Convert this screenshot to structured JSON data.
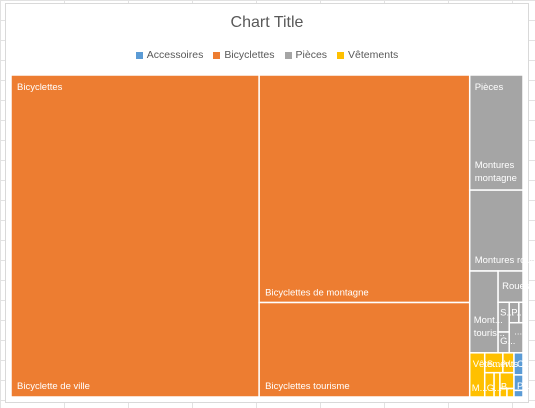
{
  "chart_data": {
    "type": "treemap",
    "title": "Chart Title",
    "legend": {
      "placement": "top",
      "entries": [
        {
          "name": "Accessoires",
          "color": "#5b9bd5"
        },
        {
          "name": "Bicyclettes",
          "color": "#ed7d31"
        },
        {
          "name": "Pièces",
          "color": "#a5a5a5"
        },
        {
          "name": "Vêtements",
          "color": "#ffc000"
        }
      ]
    },
    "groups": [
      {
        "name": "Bicyclettes",
        "color": "#ed7d31",
        "items": [
          {
            "name": "Bicyclette de ville",
            "value": 48.2
          },
          {
            "name": "Bicyclettes de montagne",
            "value": 28.9
          },
          {
            "name": "Bicyclettes tourisme",
            "value": 12.0
          }
        ]
      },
      {
        "name": "Pièces",
        "color": "#a5a5a5",
        "items": [
          {
            "name": "Montures montagne",
            "value": 3.7
          },
          {
            "name": "Montures route",
            "value": 2.6
          },
          {
            "name": "Mont... touris...",
            "value": 1.4
          },
          {
            "name": "Roues",
            "value": 0.47
          },
          {
            "name": "S...",
            "value": 0.2
          },
          {
            "name": "P...",
            "value": 0.17
          },
          {
            "name": "G...",
            "value": 0.14
          },
          {
            "name": "...",
            "value": 0.25
          }
        ]
      },
      {
        "name": "Vêtements",
        "color": "#ffc000",
        "items": [
          {
            "name": "M...",
            "value": 0.4
          },
          {
            "name": "G...",
            "value": 0.26
          },
          {
            "name": "B...",
            "value": 0.16
          },
          {
            "name": "S...",
            "value": 0.2
          },
          {
            "name": "V...",
            "value": 0.16
          }
        ]
      },
      {
        "name": "Accessoires",
        "color": "#5b9bd5",
        "items": [
          {
            "name": "C...",
            "value": 0.12
          },
          {
            "name": "P...",
            "value": 0.12
          }
        ]
      }
    ]
  }
}
